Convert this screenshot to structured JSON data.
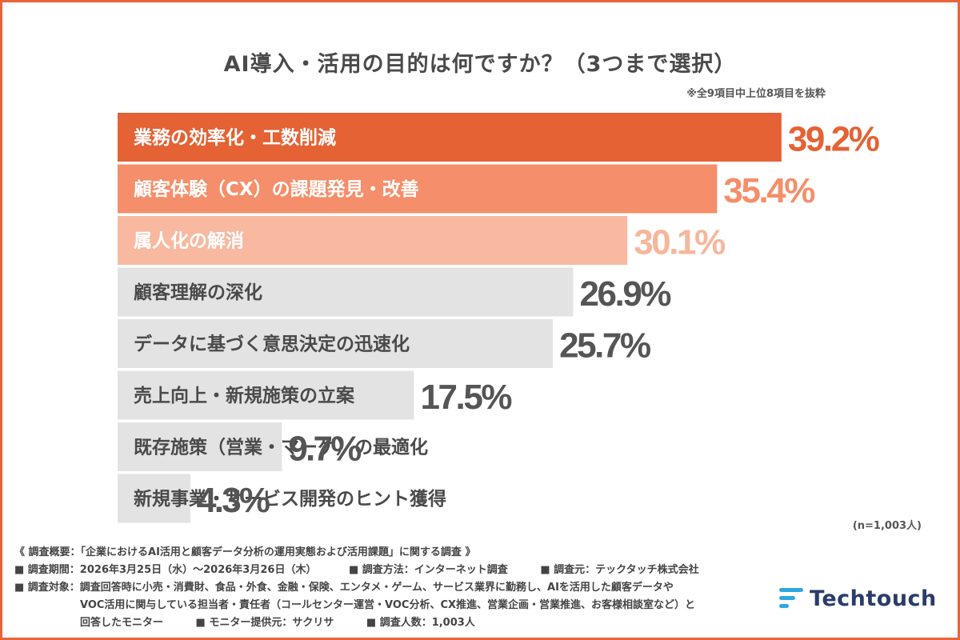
{
  "title": "AI導入・活用の目的は何ですか？（3つまで選択）",
  "note": "※全9項目中上位8項目を抜粋",
  "chart_data": {
    "type": "bar",
    "orientation": "horizontal",
    "unit": "%",
    "xlim": [
      0,
      45
    ],
    "grid": false,
    "categories": [
      "業務の効率化・工数削減",
      "顧客体験（CX）の課題発見・改善",
      "属人化の解消",
      "顧客理解の深化",
      "データに基づく意思決定の迅速化",
      "売上向上・新規施策の立案",
      "既存施策（営業・マーケ）の最適化",
      "新規事業・サービス開発のヒント獲得"
    ],
    "values": [
      39.2,
      35.4,
      30.1,
      26.9,
      25.7,
      17.5,
      9.7,
      4.3
    ],
    "value_labels": [
      "39.2%",
      "35.4%",
      "30.1%",
      "26.9%",
      "25.7%",
      "17.5%",
      "9.7%",
      "4.3%"
    ],
    "bar_colors": [
      "#e46234",
      "#f58e6a",
      "#f8b9a0",
      "#e3e3e3",
      "#e3e3e3",
      "#e3e3e3",
      "#e3e3e3",
      "#e3e3e3"
    ],
    "label_colors": [
      "#ffffff",
      "#ffffff",
      "#ffffff",
      "#4a4a4a",
      "#4a4a4a",
      "#4a4a4a",
      "#4a4a4a",
      "#4a4a4a"
    ],
    "value_colors": [
      "#e46234",
      "#f58e6a",
      "#f6b79d",
      "#555555",
      "#555555",
      "#555555",
      "#555555",
      "#555555"
    ]
  },
  "sample_size": "(n=1,003人)",
  "footer": {
    "overview": "《 調査概要：「企業におけるAI活用と顧客データ分析の運用実態および活用課題」に関する調査 》",
    "period": "■ 調査期間：2026年3月25日（水）〜2026年3月26日（木）",
    "method": "■ 調査方法：インターネット調査",
    "source": "■ 調査元：テックタッチ株式会社",
    "target_1": "■ 調査対象：調査回答時に小売・消費財、食品・外食、金融・保険、エンタメ・ゲーム、サービス業界に勤務し、AIを活用した顧客データや",
    "target_2": "VOC活用に関与している担当者・責任者（コールセンター運営・VOC分析、CX推進、営業企画・営業推進、お客様相談室など）と",
    "target_3": "回答したモニター",
    "provider": "■ モニター提供元：サクリサ",
    "count": "■ 調査人数：1,003人"
  },
  "logo": {
    "text": "Techtouch",
    "icon": "techtouch-logo-icon",
    "icon_color": "#2ea8e0",
    "text_color": "#2a3c6b"
  }
}
